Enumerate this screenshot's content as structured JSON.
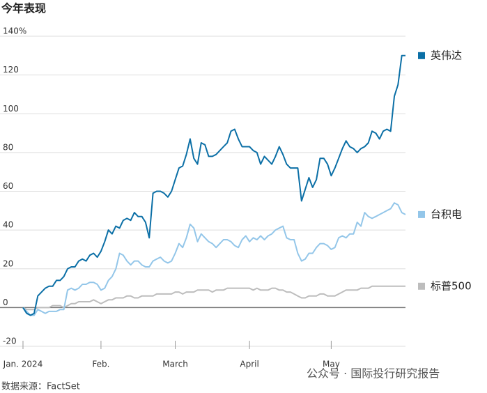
{
  "chart_data": {
    "type": "line",
    "title": "今年表现",
    "source": "数据来源：FactSet",
    "watermark": "公众号 · 国际投行研究报告",
    "xlim": [
      0,
      103
    ],
    "xticks": [
      {
        "value": 0,
        "label": "Jan. 2024"
      },
      {
        "value": 21,
        "label": "Feb."
      },
      {
        "value": 41,
        "label": "March"
      },
      {
        "value": 61,
        "label": "April"
      },
      {
        "value": 83,
        "label": "May"
      }
    ],
    "ylim": [
      -20,
      140
    ],
    "yticks": [
      -20,
      0,
      20,
      40,
      60,
      80,
      100,
      120,
      {
        "value": 140,
        "label": "140%"
      }
    ],
    "grid": true,
    "legend": "right",
    "series": [
      {
        "name": "英伟达",
        "color": "#0b6fa6",
        "values": [
          0,
          -3,
          -4,
          -3,
          6,
          8,
          10,
          11,
          11,
          14,
          14,
          16,
          20,
          21,
          21,
          24,
          25,
          24,
          27,
          28,
          26,
          29,
          34,
          40,
          38,
          42,
          41,
          45,
          46,
          45,
          49,
          47,
          47,
          44,
          36,
          59,
          60,
          60,
          59,
          57,
          60,
          66,
          72,
          73,
          79,
          87,
          77,
          74,
          85,
          84,
          78,
          78,
          79,
          81,
          83,
          85,
          91,
          92,
          87,
          83,
          83,
          83,
          81,
          80,
          74,
          78,
          76,
          74,
          78,
          83,
          79,
          74,
          72,
          72,
          72,
          55,
          61,
          67,
          62,
          66,
          77,
          77,
          74,
          68,
          72,
          77,
          82,
          86,
          83,
          82,
          80,
          82,
          83,
          85,
          91,
          90,
          87,
          91,
          92,
          91,
          109,
          115,
          130,
          130
        ]
      },
      {
        "name": "台积电",
        "color": "#93c6e9",
        "values": [
          0,
          -2,
          -4,
          -4,
          -1,
          -2,
          -3,
          -2,
          -2,
          -2,
          -1,
          -1,
          9,
          10,
          9,
          10,
          12,
          12,
          13,
          13,
          12,
          9,
          10,
          14,
          16,
          20,
          28,
          27,
          24,
          22,
          24,
          24,
          22,
          21,
          21,
          24,
          25,
          26,
          24,
          23,
          24,
          28,
          33,
          31,
          36,
          43,
          41,
          34,
          38,
          36,
          34,
          33,
          31,
          33,
          35,
          35,
          34,
          32,
          31,
          35,
          37,
          34,
          36,
          35,
          37,
          35,
          37,
          38,
          40,
          41,
          42,
          36,
          35,
          35,
          28,
          24,
          25,
          28,
          28,
          31,
          33,
          33,
          32,
          30,
          31,
          36,
          37,
          36,
          38,
          38,
          44,
          42,
          49,
          47,
          46,
          47,
          48,
          49,
          50,
          51,
          54,
          53,
          49,
          48
        ]
      },
      {
        "name": "标普500",
        "color": "#bdbdbd",
        "values": [
          0,
          -1,
          -1,
          -1,
          0,
          0,
          0,
          0,
          1,
          1,
          1,
          0,
          1,
          2,
          2,
          3,
          3,
          3,
          3,
          4,
          3,
          2,
          3,
          4,
          4,
          5,
          5,
          5,
          6,
          6,
          5,
          5,
          6,
          6,
          6,
          6,
          7,
          7,
          7,
          7,
          7,
          8,
          8,
          7,
          8,
          8,
          8,
          9,
          9,
          9,
          9,
          8,
          9,
          9,
          9,
          10,
          10,
          10,
          10,
          10,
          10,
          10,
          9,
          10,
          9,
          9,
          9,
          10,
          10,
          9,
          9,
          8,
          8,
          7,
          6,
          5,
          5,
          6,
          6,
          6,
          7,
          7,
          6,
          6,
          6,
          7,
          8,
          9,
          9,
          9,
          9,
          10,
          10,
          10,
          11,
          11,
          11,
          11,
          11,
          11,
          11,
          11,
          11,
          11
        ]
      }
    ]
  }
}
